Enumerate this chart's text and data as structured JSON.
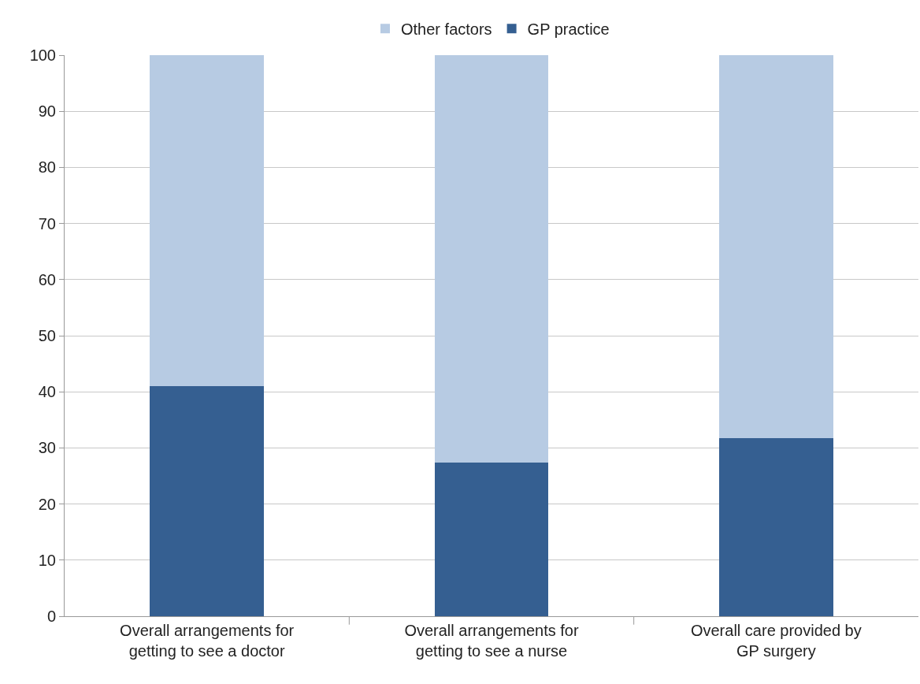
{
  "chart_data": {
    "type": "bar",
    "stacked": true,
    "categories": [
      "Overall arrangements for getting to see a doctor",
      "Overall arrangements for getting to see a nurse",
      "Overall care provided by GP surgery"
    ],
    "series": [
      {
        "name": "GP practice",
        "color": "#355f91",
        "values": [
          41,
          27.4,
          31.7
        ]
      },
      {
        "name": "Other factors",
        "color": "#b7cbe3",
        "values": [
          59,
          72.6,
          68.3
        ]
      }
    ],
    "ylim": [
      0,
      100
    ],
    "yticks": [
      0,
      10,
      20,
      30,
      40,
      50,
      60,
      70,
      80,
      90,
      100
    ],
    "grid": "y",
    "legend": "top"
  }
}
